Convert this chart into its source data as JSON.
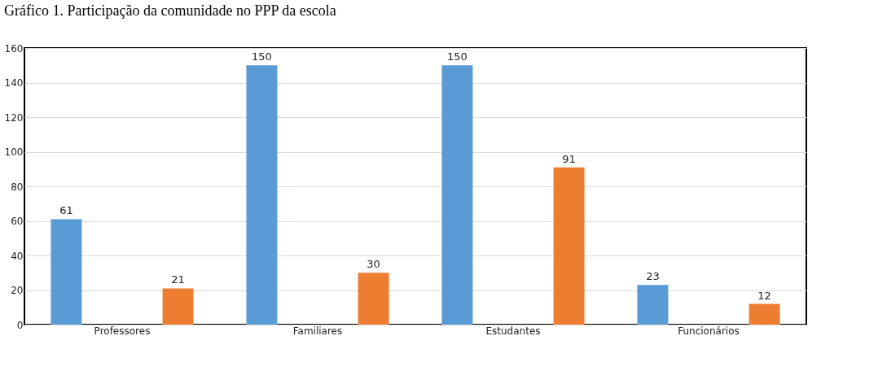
{
  "chart_data": {
    "type": "bar",
    "title": "Gráfico 1. Participação da comunidade no PPP da escola",
    "categories": [
      "Professores",
      "Familiares",
      "Estudantes",
      "Funcionários"
    ],
    "series": [
      {
        "color": "#5b9bd5",
        "values": [
          61,
          150,
          150,
          23
        ]
      },
      {
        "color": "#ed7d31",
        "values": [
          21,
          30,
          91,
          12
        ]
      }
    ],
    "ylim": [
      0,
      160
    ],
    "yticks": [
      0,
      20,
      40,
      60,
      80,
      100,
      120,
      140,
      160
    ],
    "grid": "y",
    "data_labels": true
  }
}
